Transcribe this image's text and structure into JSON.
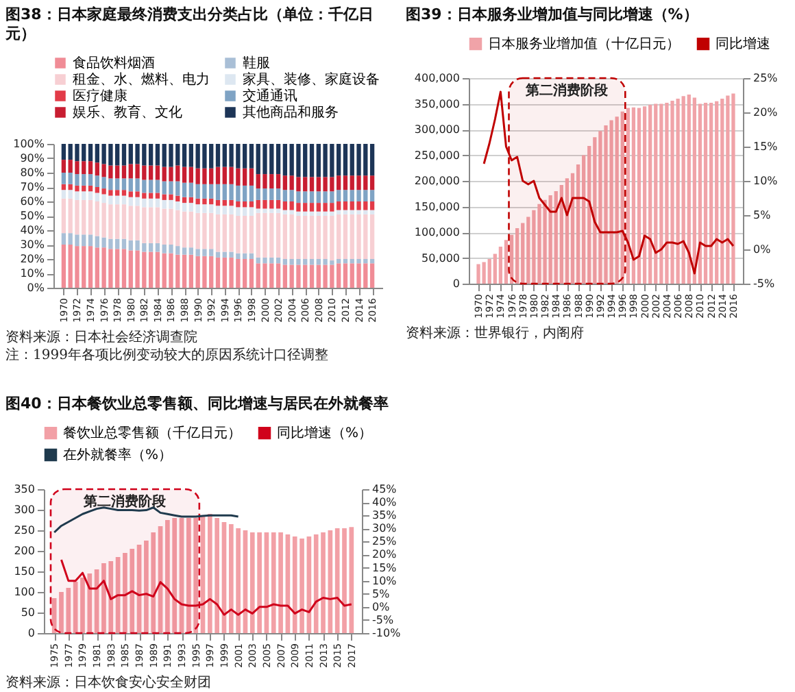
{
  "chart_data": [
    {
      "type": "bar",
      "title": "图38：日本家庭最终消费支出分类占比（单位：千亿日元）",
      "stacked": true,
      "legend": "top",
      "categories": [
        "1970",
        null,
        "1972",
        null,
        "1974",
        null,
        "1976",
        null,
        "1978",
        null,
        "1980",
        null,
        "1982",
        null,
        "1984",
        null,
        "1986",
        null,
        "1988",
        null,
        "1990",
        null,
        "1992",
        null,
        "1994",
        null,
        "1996",
        null,
        "1998",
        null,
        "2000",
        null,
        "2002",
        null,
        "2004",
        null,
        "2006",
        null,
        "2008",
        null,
        "2010",
        null,
        "2012",
        null,
        "2014",
        null,
        "2016"
      ],
      "ylim": [
        0,
        100
      ],
      "yticks": [
        {
          "value": 0,
          "label": "0%"
        },
        {
          "value": 10,
          "label": "10%"
        },
        {
          "value": 20,
          "label": "20%"
        },
        {
          "value": 30,
          "label": "30%"
        },
        {
          "value": 40,
          "label": "40%"
        },
        {
          "value": 50,
          "label": "50%"
        },
        {
          "value": 60,
          "label": "60%"
        },
        {
          "value": 70,
          "label": "70%"
        },
        {
          "value": 80,
          "label": "80%"
        },
        {
          "value": 90,
          "label": "90%"
        },
        {
          "value": 100,
          "label": "100%"
        }
      ],
      "series": [
        {
          "name": "食品饮料烟酒",
          "color": "#f08c96",
          "values": [
            30,
            30,
            29,
            29,
            29,
            28,
            28,
            27,
            27,
            27,
            26,
            26,
            25,
            25,
            25,
            24,
            24,
            23,
            23,
            23,
            22,
            22,
            22,
            21,
            21,
            21,
            20,
            20,
            20,
            17,
            17,
            17,
            17,
            16,
            16,
            16,
            16,
            16,
            16,
            16,
            16,
            17,
            17,
            17,
            17,
            17,
            17
          ]
        },
        {
          "name": "鞋服",
          "color": "#a9bfd6",
          "values": [
            8,
            8,
            8,
            8,
            8,
            8,
            7,
            7,
            7,
            7,
            7,
            7,
            6,
            6,
            6,
            6,
            6,
            6,
            5,
            5,
            5,
            5,
            5,
            4,
            4,
            4,
            4,
            4,
            4,
            4,
            4,
            4,
            4,
            4,
            4,
            4,
            4,
            4,
            4,
            4,
            3,
            3,
            3,
            3,
            3,
            3,
            3
          ]
        },
        {
          "name": "租金、水、燃料、电力",
          "color": "#f7cfd3",
          "values": [
            24,
            24,
            24,
            24,
            24,
            24,
            24,
            24,
            24,
            24,
            24,
            24,
            25,
            25,
            25,
            25,
            25,
            25,
            25,
            25,
            25,
            25,
            25,
            26,
            26,
            26,
            26,
            26,
            26,
            31,
            31,
            31,
            31,
            31,
            31,
            30,
            30,
            30,
            30,
            30,
            31,
            31,
            31,
            31,
            31,
            31,
            31
          ]
        },
        {
          "name": "家具、装修、家庭设备",
          "color": "#dde7f1",
          "values": [
            6,
            6,
            6,
            6,
            6,
            6,
            6,
            6,
            6,
            6,
            6,
            6,
            6,
            6,
            6,
            6,
            6,
            6,
            6,
            6,
            6,
            6,
            6,
            6,
            6,
            6,
            6,
            6,
            6,
            3,
            3,
            3,
            3,
            3,
            3,
            3,
            3,
            3,
            3,
            3,
            3,
            3,
            3,
            3,
            3,
            3,
            3
          ]
        },
        {
          "name": "医疗健康",
          "color": "#e23b48",
          "values": [
            4,
            4,
            4,
            4,
            4,
            4,
            4,
            4,
            4,
            4,
            4,
            4,
            4,
            4,
            4,
            4,
            4,
            4,
            4,
            4,
            4,
            4,
            4,
            4,
            4,
            4,
            4,
            4,
            4,
            6,
            6,
            6,
            6,
            6,
            6,
            6,
            6,
            6,
            6,
            6,
            6,
            6,
            6,
            6,
            6,
            6,
            6
          ]
        },
        {
          "name": "交通通讯",
          "color": "#7fa3c4",
          "values": [
            8,
            8,
            8,
            8,
            8,
            8,
            8,
            8,
            8,
            8,
            9,
            9,
            9,
            9,
            9,
            9,
            9,
            10,
            10,
            10,
            10,
            10,
            10,
            11,
            11,
            11,
            11,
            11,
            11,
            8,
            8,
            8,
            8,
            8,
            8,
            8,
            8,
            8,
            8,
            8,
            8,
            8,
            8,
            8,
            8,
            8,
            8
          ]
        },
        {
          "name": "娱乐、教育、文化",
          "color": "#c81d31",
          "values": [
            9,
            9,
            9,
            9,
            9,
            9,
            9,
            9,
            9,
            9,
            10,
            10,
            10,
            10,
            10,
            10,
            10,
            11,
            11,
            11,
            11,
            11,
            11,
            12,
            12,
            12,
            12,
            12,
            12,
            10,
            10,
            10,
            10,
            10,
            10,
            10,
            10,
            10,
            10,
            10,
            10,
            10,
            10,
            10,
            10,
            10,
            10
          ]
        },
        {
          "name": "其他商品和服务",
          "color": "#1d3557",
          "values": [
            11,
            11,
            12,
            12,
            12,
            13,
            14,
            15,
            15,
            15,
            14,
            14,
            15,
            15,
            15,
            16,
            16,
            15,
            16,
            16,
            17,
            17,
            17,
            16,
            16,
            16,
            17,
            17,
            17,
            21,
            21,
            21,
            21,
            22,
            22,
            23,
            23,
            23,
            23,
            23,
            23,
            22,
            22,
            22,
            22,
            22,
            22
          ]
        }
      ],
      "annotations": [
        "资料来源：日本社会经济调查院",
        "注：1999年各项比例变动较大的原因系统计口径调整"
      ]
    },
    {
      "type": "bar",
      "title": "图39：日本服务业增加值与同比增速（%）",
      "legend": "top",
      "grid": "y",
      "categories": [
        "1970",
        null,
        "1972",
        null,
        "1974",
        null,
        "1976",
        null,
        "1978",
        null,
        "1980",
        null,
        "1982",
        null,
        "1984",
        null,
        "1986",
        null,
        "1988",
        null,
        "1990",
        null,
        "1992",
        null,
        "1994",
        null,
        "1996",
        null,
        "1998",
        null,
        "2000",
        null,
        "2002",
        null,
        "2004",
        null,
        "2006",
        null,
        "2008",
        null,
        "2010",
        null,
        "2012",
        null,
        "2014",
        null,
        "2016"
      ],
      "ylim": [
        0,
        400000
      ],
      "yticks": [
        {
          "value": 0,
          "label": "0"
        },
        {
          "value": 50000,
          "label": "50,000"
        },
        {
          "value": 100000,
          "label": "100,000"
        },
        {
          "value": 150000,
          "label": "150,000"
        },
        {
          "value": 200000,
          "label": "200,000"
        },
        {
          "value": 250000,
          "label": "250,000"
        },
        {
          "value": 300000,
          "label": "300,000"
        },
        {
          "value": 350000,
          "label": "350,000"
        },
        {
          "value": 400000,
          "label": "400,000"
        }
      ],
      "y2lim": [
        -5,
        25
      ],
      "y2ticks": [
        {
          "value": -5,
          "label": "-5%"
        },
        {
          "value": 0,
          "label": "0%"
        },
        {
          "value": 5,
          "label": "5%"
        },
        {
          "value": 10,
          "label": "10%"
        },
        {
          "value": 15,
          "label": "15%"
        },
        {
          "value": 20,
          "label": "20%"
        },
        {
          "value": 25,
          "label": "25%"
        }
      ],
      "series": [
        {
          "name": "日本服务业增加值（十亿日元）",
          "color": "#f0a3a8",
          "values": [
            38000,
            42000,
            48000,
            58000,
            72000,
            85000,
            95000,
            108000,
            118000,
            130000,
            143000,
            155000,
            163000,
            172000,
            180000,
            192000,
            205000,
            215000,
            232000,
            250000,
            268000,
            285000,
            297000,
            308000,
            318000,
            325000,
            335000,
            342000,
            343000,
            342000,
            345000,
            348000,
            350000,
            350000,
            352000,
            356000,
            360000,
            365000,
            368000,
            362000,
            350000,
            352000,
            352000,
            355000,
            360000,
            366000,
            370000
          ]
        },
        {
          "name": "同比增速",
          "type": "line",
          "axis": "y2",
          "color": "#c00000",
          "values": [
            null,
            12.5,
            15.5,
            19,
            23,
            15,
            13,
            13.5,
            10,
            9.5,
            10,
            7.5,
            6.5,
            5.5,
            5.5,
            7.5,
            5,
            7.5,
            7.5,
            7.5,
            7,
            4,
            2.5,
            2.5,
            2.5,
            2.5,
            2.7,
            1,
            -1.5,
            -1,
            2,
            1.5,
            -0.5,
            0,
            1,
            1,
            0.8,
            1.2,
            -0.5,
            -3.5,
            1,
            0.5,
            0.5,
            1.5,
            1,
            1.5,
            0.5
          ]
        }
      ],
      "bands": [
        {
          "axis": "x",
          "from": "1976",
          "to": "1996",
          "label": "第二消费阶段",
          "color": "#c00000"
        }
      ],
      "annotations": [
        "资料来源：世界银行，内阁府"
      ]
    },
    {
      "type": "bar",
      "title": "图40：日本餐饮业总零售额、同比增速与居民在外就餐率",
      "legend": "top",
      "categories": [
        "1975",
        null,
        "1977",
        null,
        "1979",
        null,
        "1981",
        null,
        "1983",
        null,
        "1985",
        null,
        "1987",
        null,
        "1989",
        null,
        "1991",
        null,
        "1993",
        null,
        "1995",
        null,
        "1997",
        null,
        "1999",
        null,
        "2001",
        null,
        "2003",
        null,
        "2005",
        null,
        "2007",
        null,
        "2009",
        null,
        "2011",
        null,
        "2013",
        null,
        "2015",
        null,
        "2017"
      ],
      "ylim": [
        0,
        350
      ],
      "yticks": [
        0,
        50,
        100,
        150,
        200,
        250,
        300,
        350
      ],
      "y2lim": [
        -10,
        45
      ],
      "y2ticks": [
        {
          "value": -10,
          "label": "-10%"
        },
        {
          "value": -5,
          "label": "-5%"
        },
        {
          "value": 0,
          "label": "0%"
        },
        {
          "value": 5,
          "label": "5%"
        },
        {
          "value": 10,
          "label": "10%"
        },
        {
          "value": 15,
          "label": "15%"
        },
        {
          "value": 20,
          "label": "20%"
        },
        {
          "value": 25,
          "label": "25%"
        },
        {
          "value": 30,
          "label": "30%"
        },
        {
          "value": 35,
          "label": "35%"
        },
        {
          "value": 40,
          "label": "40%"
        },
        {
          "value": 45,
          "label": "45%"
        }
      ],
      "series": [
        {
          "name": "餐饮业总零售额（千亿日元）",
          "color": "#f2a0a6",
          "values": [
            85,
            100,
            110,
            125,
            135,
            145,
            155,
            170,
            175,
            185,
            195,
            205,
            215,
            225,
            245,
            260,
            275,
            280,
            280,
            280,
            280,
            285,
            290,
            280,
            270,
            265,
            255,
            250,
            245,
            245,
            245,
            245,
            245,
            240,
            235,
            230,
            235,
            240,
            245,
            250,
            255,
            255,
            258
          ]
        },
        {
          "name": "同比增速（%）",
          "type": "line",
          "axis": "y2",
          "color": "#d0021b",
          "values": [
            null,
            18,
            10,
            10,
            13,
            7,
            7,
            10,
            3,
            4.5,
            4.5,
            6,
            4.5,
            5,
            4,
            9.5,
            7,
            3,
            1,
            0.5,
            0.5,
            1,
            3,
            1,
            -3,
            -1,
            -3,
            -1,
            -2.5,
            0,
            0,
            1,
            0.5,
            0.5,
            -2.5,
            -1,
            -2,
            2,
            3.5,
            3,
            3.5,
            0.5,
            1
          ]
        },
        {
          "name": "在外就餐率（%）",
          "type": "line",
          "axis": "y2",
          "color": "#1f3a4d",
          "values": [
            28.5,
            31,
            32.5,
            34,
            35.5,
            36.5,
            37.5,
            38,
            37.5,
            37,
            37,
            37,
            36.8,
            37,
            38,
            36,
            35.5,
            35,
            34.5,
            34.5,
            34.5,
            34.8,
            35,
            35,
            35,
            35,
            34.5,
            null,
            null,
            null,
            null,
            null,
            null,
            null,
            null,
            null,
            null,
            null,
            null,
            null,
            null,
            null,
            null
          ]
        }
      ],
      "bands": [
        {
          "axis": "x",
          "from": "1975",
          "to": "1995",
          "label": "第二消费阶段",
          "color": "#d0021b"
        }
      ],
      "annotations": [
        "资料来源：日本饮食安心安全财团"
      ]
    }
  ]
}
